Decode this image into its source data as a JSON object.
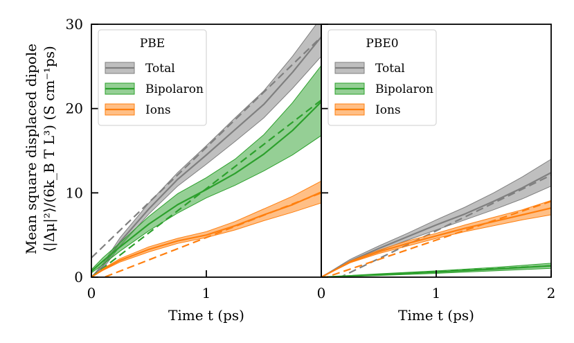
{
  "chart_data": [
    {
      "type": "line",
      "panel": "left",
      "legend_title": "PBE",
      "legend_position": "top-left",
      "xlabel": "Time t (ps)",
      "ylabel_line1": "Mean square displaced dipole",
      "ylabel_line2": "⟨|Δμ|²⟩/(6k_B T L³) (S cm⁻¹ps)",
      "xlim": [
        0,
        2
      ],
      "ylim": [
        0,
        30
      ],
      "xticks": [
        0,
        1
      ],
      "xtick_labels": [
        "0",
        "1"
      ],
      "yticks": [
        0,
        10,
        20,
        30
      ],
      "ytick_labels": [
        "0",
        "10",
        "20",
        "30"
      ],
      "series": [
        {
          "name": "Total",
          "color": "#7f7f7f",
          "x": [
            0,
            0.1,
            0.25,
            0.5,
            0.75,
            1.0,
            1.25,
            1.5,
            1.75,
            2.0
          ],
          "mean": [
            0,
            1.3,
            4.2,
            8.1,
            11.6,
            14.5,
            17.5,
            20.5,
            24.3,
            28.5
          ],
          "lower": [
            0,
            1.0,
            3.7,
            7.5,
            10.8,
            13.4,
            16.1,
            18.9,
            22.4,
            26.2
          ],
          "upper": [
            0,
            1.6,
            4.7,
            8.8,
            12.4,
            15.6,
            18.9,
            22.1,
            26.2,
            30.8
          ],
          "fit": {
            "slope": 13.1,
            "intercept": 2.3,
            "x_range": [
              0,
              2
            ]
          }
        },
        {
          "name": "Bipolaron",
          "color": "#2ca02c",
          "x": [
            0,
            0.1,
            0.25,
            0.5,
            0.75,
            1.0,
            1.25,
            1.5,
            1.75,
            2.0
          ],
          "mean": [
            0.7,
            1.9,
            3.6,
            6.3,
            8.6,
            10.4,
            12.3,
            14.6,
            17.4,
            20.8
          ],
          "lower": [
            0.5,
            1.5,
            3.1,
            5.5,
            7.6,
            9.4,
            10.9,
            12.6,
            14.5,
            16.8
          ],
          "upper": [
            0.9,
            2.3,
            4.1,
            7.2,
            9.9,
            11.8,
            14.0,
            16.9,
            20.7,
            25.1
          ],
          "fit": {
            "slope": 10.5,
            "intercept": 0.0,
            "x_range": [
              0,
              2
            ]
          }
        },
        {
          "name": "Ions",
          "color": "#ff7f0e",
          "x": [
            0,
            0.1,
            0.25,
            0.5,
            0.75,
            1.0,
            1.25,
            1.5,
            1.75,
            2.0
          ],
          "mean": [
            0,
            0.9,
            2.0,
            3.3,
            4.3,
            5.0,
            6.1,
            7.4,
            8.6,
            10.1
          ],
          "lower": [
            0,
            0.8,
            1.8,
            3.0,
            4.0,
            4.7,
            5.6,
            6.7,
            7.7,
            8.8
          ],
          "upper": [
            0,
            1.0,
            2.2,
            3.6,
            4.6,
            5.4,
            6.6,
            8.1,
            9.6,
            11.4
          ],
          "fit": {
            "slope": 5.3,
            "intercept": -0.6,
            "x_range": [
              0.12,
              2
            ]
          }
        }
      ]
    },
    {
      "type": "line",
      "panel": "right",
      "legend_title": "PBE0",
      "legend_position": "top-left",
      "xlabel": "Time t (ps)",
      "xlim": [
        0,
        2
      ],
      "ylim": [
        0,
        30
      ],
      "xticks": [
        0,
        1,
        2
      ],
      "xtick_labels": [
        "0",
        "1",
        "2"
      ],
      "yticks": [
        0,
        10,
        20,
        30
      ],
      "series": [
        {
          "name": "Total",
          "color": "#7f7f7f",
          "x": [
            0,
            0.25,
            0.5,
            0.75,
            1.0,
            1.25,
            1.5,
            1.75,
            2.0
          ],
          "mean": [
            0,
            1.9,
            3.4,
            4.8,
            6.2,
            7.5,
            9.0,
            10.6,
            12.4
          ],
          "lower": [
            0,
            1.7,
            3.1,
            4.4,
            5.6,
            6.8,
            8.0,
            9.3,
            10.8
          ],
          "upper": [
            0,
            2.1,
            3.7,
            5.2,
            6.8,
            8.3,
            10.0,
            11.9,
            14.0
          ],
          "fit": {
            "slope": 6.6,
            "intercept": -1.1,
            "x_range": [
              0.15,
              2
            ]
          }
        },
        {
          "name": "Bipolaron",
          "color": "#2ca02c",
          "x": [
            0,
            0.5,
            1.0,
            1.5,
            2.0
          ],
          "mean": [
            0,
            0.3,
            0.6,
            0.95,
            1.35
          ],
          "lower": [
            0,
            0.2,
            0.45,
            0.75,
            1.05
          ],
          "upper": [
            0,
            0.4,
            0.75,
            1.15,
            1.65
          ],
          "fit": {
            "slope": 0.7,
            "intercept": -0.05,
            "x_range": [
              0,
              2
            ]
          }
        },
        {
          "name": "Ions",
          "color": "#ff7f0e",
          "x": [
            0,
            0.25,
            0.5,
            0.75,
            1.0,
            1.25,
            1.5,
            1.75,
            2.0
          ],
          "mean": [
            0,
            1.8,
            3.0,
            4.0,
            4.9,
            5.8,
            6.6,
            7.4,
            8.2
          ],
          "lower": [
            0,
            1.7,
            2.8,
            3.7,
            4.6,
            5.4,
            6.1,
            6.8,
            7.4
          ],
          "upper": [
            0,
            1.9,
            3.2,
            4.3,
            5.2,
            6.2,
            7.1,
            8.0,
            9.1
          ],
          "fit": {
            "slope": 4.6,
            "intercept": -0.2,
            "x_range": [
              0,
              2
            ]
          }
        }
      ]
    }
  ]
}
